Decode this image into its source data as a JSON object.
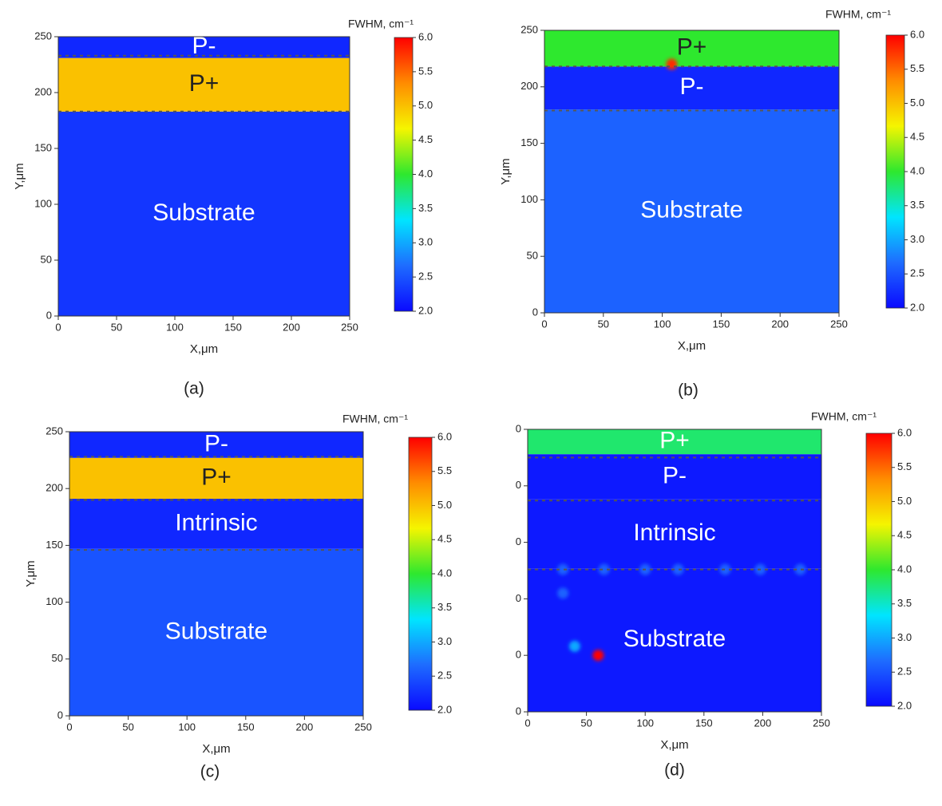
{
  "chart_data": [
    {
      "type": "heatmap",
      "panel_label": "(a)",
      "xlabel": "X,μm",
      "ylabel": "Y,μm",
      "xlim": [
        0,
        250
      ],
      "ylim": [
        0,
        250
      ],
      "xticks": [
        0,
        50,
        100,
        150,
        200,
        250
      ],
      "yticks": [
        0,
        50,
        100,
        150,
        200,
        250
      ],
      "colorbar_label": "FWHM, cm⁻¹",
      "clim": [
        2,
        6
      ],
      "cticks": [
        {
          "value": 2,
          "label": "2.0"
        },
        {
          "value": 2.5,
          "label": "2.5"
        },
        {
          "value": 3,
          "label": "3.0"
        },
        {
          "value": 3.5,
          "label": "3.5"
        },
        {
          "value": 4,
          "label": "4.0"
        },
        {
          "value": 4.5,
          "label": "4.5"
        },
        {
          "value": 5,
          "label": "5.0"
        },
        {
          "value": 5.5,
          "label": "5.5"
        },
        {
          "value": 6,
          "label": "6.0"
        }
      ],
      "colormap": [
        "#0a0aff",
        "#1e6cff",
        "#00e5ff",
        "#2ee82e",
        "#f5f500",
        "#ff8c00",
        "#ff0000"
      ],
      "layers": [
        {
          "label": "Substrate",
          "y": [
            0,
            183
          ],
          "value": 2.3
        },
        {
          "label": "P+",
          "y": [
            183,
            231
          ],
          "value": 5.0
        },
        {
          "label": "P-",
          "y": [
            231,
            250
          ],
          "value": 2.2
        }
      ],
      "boundaries": [
        233,
        183
      ],
      "spots": []
    },
    {
      "type": "heatmap",
      "panel_label": "(b)",
      "xlabel": "X,μm",
      "ylabel": "Y,μm",
      "xlim": [
        0,
        250
      ],
      "ylim": [
        0,
        250
      ],
      "xticks": [
        0,
        50,
        100,
        150,
        200,
        250
      ],
      "yticks": [
        0,
        50,
        100,
        150,
        200,
        250
      ],
      "colorbar_label": "FWHM, cm⁻¹",
      "clim": [
        2,
        6
      ],
      "cticks": [
        {
          "value": 2,
          "label": "2.0"
        },
        {
          "value": 2.5,
          "label": "2.5"
        },
        {
          "value": 3,
          "label": "3.0"
        },
        {
          "value": 3.5,
          "label": "3.5"
        },
        {
          "value": 4,
          "label": "4.0"
        },
        {
          "value": 4.5,
          "label": "4.5"
        },
        {
          "value": 5,
          "label": "5.0"
        },
        {
          "value": 5.5,
          "label": "5.5"
        },
        {
          "value": 6,
          "label": "6.0"
        }
      ],
      "colormap": [
        "#0a0aff",
        "#1e6cff",
        "#00e5ff",
        "#2ee82e",
        "#f5f500",
        "#ff8c00",
        "#ff0000"
      ],
      "layers": [
        {
          "label": "Substrate",
          "y": [
            0,
            180
          ],
          "value": 2.6
        },
        {
          "label": "P-",
          "y": [
            180,
            218
          ],
          "value": 2.2
        },
        {
          "label": "P+",
          "y": [
            218,
            250
          ],
          "value": 4.0
        }
      ],
      "boundaries": [
        218,
        179
      ],
      "spots": [
        {
          "x": 108,
          "y": 220,
          "value": 5.8
        }
      ]
    },
    {
      "type": "heatmap",
      "panel_label": "(c)",
      "xlabel": "X,μm",
      "ylabel": "Y,μm",
      "xlim": [
        0,
        250
      ],
      "ylim": [
        0,
        250
      ],
      "xticks": [
        0,
        50,
        100,
        150,
        200,
        250
      ],
      "yticks": [
        0,
        50,
        100,
        150,
        200,
        250
      ],
      "colorbar_label": "FWHM, cm⁻¹",
      "clim": [
        2,
        6
      ],
      "cticks": [
        {
          "value": 2,
          "label": "2.0"
        },
        {
          "value": 2.5,
          "label": "2.5"
        },
        {
          "value": 3,
          "label": "3.0"
        },
        {
          "value": 3.5,
          "label": "3.5"
        },
        {
          "value": 4,
          "label": "4.0"
        },
        {
          "value": 4.5,
          "label": "4.5"
        },
        {
          "value": 5,
          "label": "5.0"
        },
        {
          "value": 5.5,
          "label": "5.5"
        },
        {
          "value": 6,
          "label": "6.0"
        }
      ],
      "colormap": [
        "#0a0aff",
        "#1e6cff",
        "#00e5ff",
        "#2ee82e",
        "#f5f500",
        "#ff8c00",
        "#ff0000"
      ],
      "layers": [
        {
          "label": "Substrate",
          "y": [
            0,
            147
          ],
          "value": 2.5
        },
        {
          "label": "Intrinsic",
          "y": [
            147,
            191
          ],
          "value": 2.2
        },
        {
          "label": "P+",
          "y": [
            191,
            227
          ],
          "value": 5.0
        },
        {
          "label": "P-",
          "y": [
            227,
            250
          ],
          "value": 2.2
        }
      ],
      "boundaries": [
        228,
        190,
        146
      ],
      "spots": []
    },
    {
      "type": "heatmap",
      "panel_label": "(d)",
      "xlabel": "X,μm",
      "xlim": [
        0,
        250
      ],
      "ylim": [
        0,
        250
      ],
      "xticks": [
        0,
        50,
        100,
        150,
        200,
        250
      ],
      "yticks": [
        {
          "value": 0,
          "label": "0"
        },
        {
          "value": 50,
          "label": "0"
        },
        {
          "value": 100,
          "label": "0"
        },
        {
          "value": 150,
          "label": "0"
        },
        {
          "value": 200,
          "label": "0"
        },
        {
          "value": 250,
          "label": "0"
        }
      ],
      "colorbar_label": "FWHM, cm⁻¹",
      "clim": [
        2,
        6
      ],
      "cticks": [
        {
          "value": 2,
          "label": "2.0"
        },
        {
          "value": 2.5,
          "label": "2.5"
        },
        {
          "value": 3,
          "label": "3.0"
        },
        {
          "value": 3.5,
          "label": "3.5"
        },
        {
          "value": 4,
          "label": "4.0"
        },
        {
          "value": 4.5,
          "label": "4.5"
        },
        {
          "value": 5,
          "label": "5.0"
        },
        {
          "value": 5.5,
          "label": "5.5"
        },
        {
          "value": 6,
          "label": "6.0"
        }
      ],
      "colormap": [
        "#0a0aff",
        "#1e6cff",
        "#00e5ff",
        "#2ee82e",
        "#f5f500",
        "#ff8c00",
        "#ff0000"
      ],
      "layers": [
        {
          "label": "Substrate",
          "y": [
            0,
            127
          ],
          "value": 2.1
        },
        {
          "label": "Intrinsic",
          "y": [
            127,
            188
          ],
          "value": 2.1
        },
        {
          "label": "P-",
          "y": [
            188,
            228
          ],
          "value": 2.1
        },
        {
          "label": "P+",
          "y": [
            228,
            250
          ],
          "value": 3.8
        }
      ],
      "boundaries": [
        225,
        187,
        126
      ],
      "spots": [
        {
          "x": 60,
          "y": 50,
          "value": 6.0
        },
        {
          "x": 40,
          "y": 58,
          "value": 3.0
        },
        {
          "x": 30,
          "y": 105,
          "value": 2.6
        },
        {
          "x": 30,
          "y": 126,
          "value": 2.6
        },
        {
          "x": 65,
          "y": 126,
          "value": 2.6
        },
        {
          "x": 100,
          "y": 126,
          "value": 2.6
        },
        {
          "x": 128,
          "y": 126,
          "value": 2.6
        },
        {
          "x": 168,
          "y": 126,
          "value": 2.6
        },
        {
          "x": 198,
          "y": 126,
          "value": 2.6
        },
        {
          "x": 232,
          "y": 126,
          "value": 2.6
        }
      ]
    }
  ]
}
